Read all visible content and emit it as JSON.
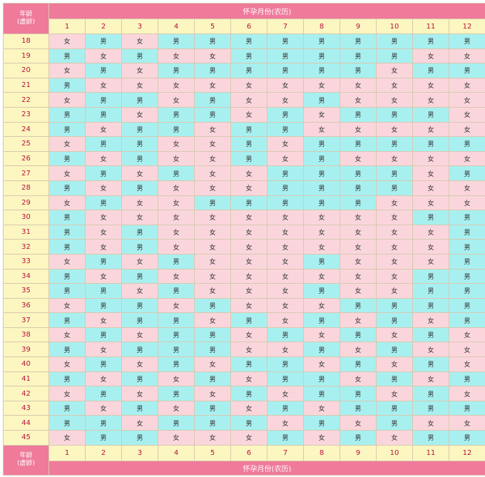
{
  "header": {
    "age_label_line1": "年龄",
    "age_label_line2": "(虚龄)",
    "title": "怀孕月份(农历)"
  },
  "months": [
    "1",
    "2",
    "3",
    "4",
    "5",
    "6",
    "7",
    "8",
    "9",
    "10",
    "11",
    "12"
  ],
  "legend_values": {
    "boy": "男",
    "girl": "女"
  },
  "colors": {
    "header_bg": "#ef7a9a",
    "label_bg": "#fcf6c0",
    "label_text": "#b8123f",
    "boy_bg": "#a8f0f0",
    "girl_bg": "#fad6dc"
  },
  "rows": [
    {
      "age": "18",
      "cells": [
        "女",
        "男",
        "女",
        "男",
        "男",
        "男",
        "男",
        "男",
        "男",
        "男",
        "男",
        "男"
      ]
    },
    {
      "age": "19",
      "cells": [
        "男",
        "女",
        "男",
        "女",
        "女",
        "男",
        "男",
        "男",
        "男",
        "男",
        "女",
        "女"
      ]
    },
    {
      "age": "20",
      "cells": [
        "女",
        "男",
        "女",
        "男",
        "男",
        "男",
        "男",
        "男",
        "男",
        "女",
        "男",
        "男"
      ]
    },
    {
      "age": "21",
      "cells": [
        "男",
        "女",
        "女",
        "女",
        "女",
        "女",
        "女",
        "女",
        "女",
        "女",
        "女",
        "女"
      ]
    },
    {
      "age": "22",
      "cells": [
        "女",
        "男",
        "男",
        "女",
        "男",
        "女",
        "女",
        "男",
        "女",
        "女",
        "女",
        "女"
      ]
    },
    {
      "age": "23",
      "cells": [
        "男",
        "男",
        "女",
        "男",
        "男",
        "女",
        "男",
        "女",
        "男",
        "男",
        "男",
        "女"
      ]
    },
    {
      "age": "24",
      "cells": [
        "男",
        "女",
        "男",
        "男",
        "女",
        "男",
        "男",
        "女",
        "女",
        "女",
        "女",
        "女"
      ]
    },
    {
      "age": "25",
      "cells": [
        "女",
        "男",
        "男",
        "女",
        "女",
        "男",
        "女",
        "男",
        "男",
        "男",
        "男",
        "男"
      ]
    },
    {
      "age": "26",
      "cells": [
        "男",
        "女",
        "男",
        "女",
        "女",
        "男",
        "女",
        "男",
        "女",
        "女",
        "女",
        "女"
      ]
    },
    {
      "age": "27",
      "cells": [
        "女",
        "男",
        "女",
        "男",
        "女",
        "女",
        "男",
        "男",
        "男",
        "男",
        "女",
        "男"
      ]
    },
    {
      "age": "28",
      "cells": [
        "男",
        "女",
        "男",
        "女",
        "女",
        "女",
        "男",
        "男",
        "男",
        "男",
        "女",
        "女"
      ]
    },
    {
      "age": "29",
      "cells": [
        "女",
        "男",
        "女",
        "女",
        "男",
        "男",
        "男",
        "男",
        "男",
        "女",
        "女",
        "女"
      ]
    },
    {
      "age": "30",
      "cells": [
        "男",
        "女",
        "女",
        "女",
        "女",
        "女",
        "女",
        "女",
        "女",
        "女",
        "男",
        "男"
      ]
    },
    {
      "age": "31",
      "cells": [
        "男",
        "女",
        "男",
        "女",
        "女",
        "女",
        "女",
        "女",
        "女",
        "女",
        "女",
        "男"
      ]
    },
    {
      "age": "32",
      "cells": [
        "男",
        "女",
        "男",
        "女",
        "女",
        "女",
        "女",
        "女",
        "女",
        "女",
        "女",
        "男"
      ]
    },
    {
      "age": "33",
      "cells": [
        "女",
        "男",
        "女",
        "男",
        "女",
        "女",
        "女",
        "男",
        "女",
        "女",
        "女",
        "男"
      ]
    },
    {
      "age": "34",
      "cells": [
        "男",
        "女",
        "男",
        "女",
        "女",
        "女",
        "女",
        "女",
        "女",
        "女",
        "男",
        "男"
      ]
    },
    {
      "age": "35",
      "cells": [
        "男",
        "男",
        "女",
        "男",
        "女",
        "女",
        "女",
        "男",
        "女",
        "女",
        "男",
        "男"
      ]
    },
    {
      "age": "36",
      "cells": [
        "女",
        "男",
        "男",
        "女",
        "男",
        "女",
        "女",
        "女",
        "男",
        "男",
        "男",
        "男"
      ]
    },
    {
      "age": "37",
      "cells": [
        "男",
        "女",
        "男",
        "男",
        "女",
        "男",
        "女",
        "男",
        "女",
        "男",
        "女",
        "男"
      ]
    },
    {
      "age": "38",
      "cells": [
        "女",
        "男",
        "女",
        "男",
        "男",
        "女",
        "男",
        "女",
        "男",
        "女",
        "男",
        "女"
      ]
    },
    {
      "age": "39",
      "cells": [
        "男",
        "女",
        "男",
        "男",
        "男",
        "女",
        "女",
        "男",
        "女",
        "男",
        "女",
        "女"
      ]
    },
    {
      "age": "40",
      "cells": [
        "女",
        "男",
        "女",
        "男",
        "女",
        "男",
        "男",
        "女",
        "男",
        "女",
        "男",
        "女"
      ]
    },
    {
      "age": "41",
      "cells": [
        "男",
        "女",
        "男",
        "女",
        "男",
        "女",
        "男",
        "男",
        "女",
        "男",
        "女",
        "男"
      ]
    },
    {
      "age": "42",
      "cells": [
        "女",
        "男",
        "女",
        "男",
        "女",
        "男",
        "女",
        "男",
        "男",
        "女",
        "男",
        "女"
      ]
    },
    {
      "age": "43",
      "cells": [
        "男",
        "女",
        "男",
        "女",
        "男",
        "女",
        "男",
        "女",
        "男",
        "男",
        "男",
        "男"
      ]
    },
    {
      "age": "44",
      "cells": [
        "男",
        "男",
        "女",
        "男",
        "男",
        "男",
        "女",
        "男",
        "女",
        "男",
        "女",
        "女"
      ]
    },
    {
      "age": "45",
      "cells": [
        "女",
        "男",
        "男",
        "女",
        "女",
        "女",
        "男",
        "女",
        "男",
        "女",
        "男",
        "男"
      ]
    }
  ],
  "footer": {
    "age_label_line1": "年龄",
    "age_label_line2": "(虚龄)",
    "title": "怀孕月份(农历)"
  }
}
